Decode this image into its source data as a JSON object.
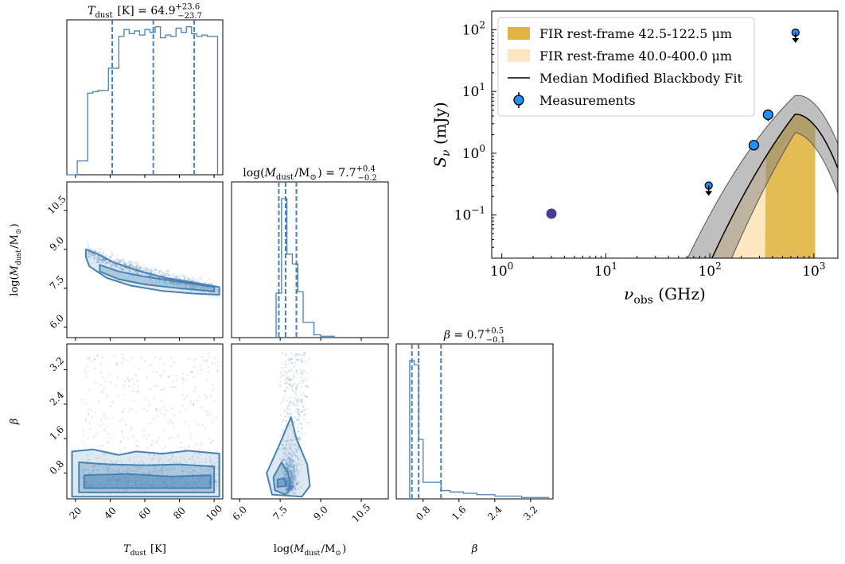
{
  "chart_data": [
    {
      "type": "histogram",
      "panel": "corner-1d-Tdust",
      "title_parts": {
        "var": "T",
        "sub": "dust",
        "unit": " [K] = 64.9",
        "sup": "+23.6",
        "inf": "−23.7"
      },
      "xlim": [
        15,
        105
      ],
      "ylim": [
        0,
        1.12
      ],
      "x_ticks": [
        "20",
        "40",
        "60",
        "80",
        "100"
      ],
      "x_tick_values": [
        20,
        40,
        60,
        80,
        100
      ],
      "xlabel_parts": {
        "var": "T",
        "sub": "dust",
        "unit": " [K]"
      },
      "quantiles": [
        41.2,
        64.9,
        88.5
      ],
      "bins": [
        [
          15,
          18,
          0
        ],
        [
          18,
          21,
          0
        ],
        [
          21,
          24,
          0.1
        ],
        [
          24,
          27,
          0.1
        ],
        [
          27,
          30,
          0.59
        ],
        [
          30,
          33,
          0.6
        ],
        [
          33,
          36,
          0.61
        ],
        [
          36,
          39,
          0.61
        ],
        [
          39,
          42,
          0.77
        ],
        [
          42,
          45,
          0.77
        ],
        [
          45,
          48,
          1.0
        ],
        [
          48,
          51,
          1.05
        ],
        [
          51,
          54,
          1.02
        ],
        [
          54,
          57,
          1.04
        ],
        [
          57,
          60,
          1.01
        ],
        [
          60,
          63,
          1.05
        ],
        [
          63,
          66,
          1.03
        ],
        [
          66,
          69,
          1.07
        ],
        [
          69,
          72,
          0.99
        ],
        [
          72,
          75,
          1.01
        ],
        [
          75,
          78,
          1.0
        ],
        [
          78,
          81,
          1.06
        ],
        [
          81,
          84,
          1.03
        ],
        [
          84,
          87,
          1.07
        ],
        [
          87,
          90,
          1.02
        ],
        [
          90,
          93,
          1.0
        ],
        [
          93,
          96,
          1.01
        ],
        [
          96,
          99,
          1.0
        ],
        [
          99,
          102,
          1.0
        ]
      ]
    },
    {
      "type": "histogram",
      "panel": "corner-1d-Mdust",
      "title_parts": {
        "pre": "log(",
        "var": "M",
        "sub": "dust",
        "mid": "/M",
        "sun": "⊙",
        "post": ") = 7.7",
        "sup": "+0.4",
        "inf": "−0.2"
      },
      "xlim": [
        5.7,
        11.5
      ],
      "ylim": [
        0,
        1.12
      ],
      "x_ticks": [
        "6.0",
        "7.5",
        "9.0",
        "10.5"
      ],
      "x_tick_values": [
        6.0,
        7.5,
        9.0,
        10.5
      ],
      "xlabel_parts": {
        "pre": "log(",
        "var": "M",
        "sub": "dust",
        "mid": "/M",
        "sun": "⊙",
        "post": ")"
      },
      "quantiles": [
        7.45,
        7.7,
        8.1
      ],
      "bins": [
        [
          7.35,
          7.55,
          0.32
        ],
        [
          7.55,
          7.75,
          1.0
        ],
        [
          7.75,
          7.95,
          0.6
        ],
        [
          7.95,
          8.15,
          0.53
        ],
        [
          8.15,
          8.35,
          0.33
        ],
        [
          8.35,
          8.55,
          0.11
        ],
        [
          8.55,
          8.75,
          0.11
        ],
        [
          8.75,
          9.0,
          0.02
        ],
        [
          9.0,
          9.5,
          0.01
        ]
      ]
    },
    {
      "type": "histogram",
      "panel": "corner-1d-beta",
      "title_parts": {
        "var": "β",
        "unit": " = 0.7",
        "sup": "+0.5",
        "inf": "−0.1"
      },
      "xlim": [
        0.2,
        3.7
      ],
      "ylim": [
        0,
        1.12
      ],
      "x_ticks": [
        "0.8",
        "1.6",
        "2.4",
        "3.2"
      ],
      "x_tick_values": [
        0.8,
        1.6,
        2.4,
        3.2
      ],
      "xlabel_parts": {
        "var": "β"
      },
      "quantiles": [
        0.55,
        0.7,
        1.2
      ],
      "bins": [
        [
          0.5,
          0.6,
          1.0
        ],
        [
          0.6,
          0.7,
          0.97
        ],
        [
          0.7,
          0.8,
          0.43
        ],
        [
          0.8,
          1.2,
          0.12
        ],
        [
          1.2,
          1.4,
          0.06
        ],
        [
          1.4,
          1.7,
          0.05
        ],
        [
          1.7,
          2.0,
          0.04
        ],
        [
          2.0,
          2.4,
          0.03
        ],
        [
          2.4,
          3.0,
          0.02
        ],
        [
          3.0,
          3.6,
          0.01
        ]
      ]
    },
    {
      "type": "scatter",
      "panel": "corner-2d-Tdust-Mdust",
      "xlim": [
        15,
        105
      ],
      "ylim": [
        5.6,
        11.6
      ],
      "y_ticks": [
        "6.0",
        "7.5",
        "9.0",
        "10.5"
      ],
      "y_tick_values": [
        6.0,
        7.5,
        9.0,
        10.5
      ],
      "ylabel_parts": {
        "pre": "log(",
        "var": "M",
        "sub": "dust",
        "mid": "/M",
        "sun": "⊙",
        "post": ")"
      },
      "trend": [
        [
          27,
          8.95
        ],
        [
          35,
          8.6
        ],
        [
          45,
          8.2
        ],
        [
          55,
          7.95
        ],
        [
          65,
          7.75
        ],
        [
          75,
          7.65
        ],
        [
          85,
          7.5
        ],
        [
          95,
          7.45
        ],
        [
          102,
          7.4
        ]
      ],
      "contours": [
        [
          [
            26,
            9.0
          ],
          [
            32,
            8.85
          ],
          [
            42,
            8.5
          ],
          [
            55,
            8.2
          ],
          [
            72,
            7.9
          ],
          [
            90,
            7.7
          ],
          [
            103,
            7.55
          ],
          [
            103,
            7.25
          ],
          [
            88,
            7.3
          ],
          [
            70,
            7.4
          ],
          [
            52,
            7.6
          ],
          [
            38,
            7.9
          ],
          [
            28,
            8.35
          ],
          [
            26,
            8.7
          ]
        ],
        [
          [
            34,
            8.4
          ],
          [
            45,
            8.15
          ],
          [
            60,
            7.95
          ],
          [
            80,
            7.75
          ],
          [
            100,
            7.55
          ],
          [
            100,
            7.38
          ],
          [
            80,
            7.5
          ],
          [
            60,
            7.65
          ],
          [
            45,
            7.85
          ],
          [
            34,
            8.15
          ]
        ]
      ]
    },
    {
      "type": "scatter",
      "panel": "corner-2d-Tdust-beta",
      "xlim": [
        15,
        105
      ],
      "ylim": [
        0.2,
        3.8
      ],
      "y_ticks": [
        "0.8",
        "1.6",
        "2.4",
        "3.2"
      ],
      "y_tick_values": [
        0.8,
        1.6,
        2.4,
        3.2
      ],
      "ylabel_parts": {
        "var": "β"
      },
      "contours": [
        [
          [
            18,
            0.25
          ],
          [
            18,
            1.3
          ],
          [
            30,
            1.35
          ],
          [
            45,
            1.22
          ],
          [
            55,
            1.3
          ],
          [
            70,
            1.25
          ],
          [
            85,
            1.32
          ],
          [
            103,
            1.25
          ],
          [
            103,
            0.25
          ]
        ],
        [
          [
            22,
            0.35
          ],
          [
            22,
            1.05
          ],
          [
            40,
            1.0
          ],
          [
            60,
            0.98
          ],
          [
            80,
            1.0
          ],
          [
            100,
            0.95
          ],
          [
            100,
            0.35
          ]
        ],
        [
          [
            25,
            0.45
          ],
          [
            25,
            0.75
          ],
          [
            50,
            0.78
          ],
          [
            75,
            0.72
          ],
          [
            98,
            0.75
          ],
          [
            98,
            0.45
          ]
        ]
      ]
    },
    {
      "type": "scatter",
      "panel": "corner-2d-Mdust-beta",
      "xlim": [
        5.7,
        11.5
      ],
      "ylim": [
        0.2,
        3.8
      ],
      "contours": [
        [
          [
            7.2,
            0.3
          ],
          [
            7.0,
            0.8
          ],
          [
            7.5,
            1.5
          ],
          [
            7.9,
            2.1
          ],
          [
            8.1,
            1.6
          ],
          [
            8.5,
            1.0
          ],
          [
            8.6,
            0.5
          ],
          [
            8.3,
            0.25
          ]
        ],
        [
          [
            7.3,
            0.4
          ],
          [
            7.25,
            0.7
          ],
          [
            7.55,
            1.05
          ],
          [
            7.8,
            0.8
          ],
          [
            7.9,
            0.45
          ],
          [
            7.7,
            0.3
          ]
        ],
        [
          [
            7.4,
            0.48
          ],
          [
            7.4,
            0.65
          ],
          [
            7.65,
            0.68
          ],
          [
            7.72,
            0.5
          ]
        ]
      ]
    },
    {
      "type": "sed",
      "panel": "sed",
      "xscale": "log",
      "yscale": "log",
      "xlim": [
        0.8,
        1700
      ],
      "ylim": [
        0.02,
        200
      ],
      "x_ticks": [
        1,
        10,
        100,
        1000
      ],
      "y_ticks": [
        0.1,
        1,
        10,
        100
      ],
      "xlabel": {
        "var": "ν",
        "sub": "obs",
        "unit": " (GHz)"
      },
      "ylabel": {
        "var": "S",
        "sub": "ν",
        "unit": " (mJy)"
      },
      "legend_position": "upper-left",
      "legend": [
        {
          "label": "FIR rest-frame 42.5-122.5 μm",
          "color": "#dfb441",
          "kind": "patch"
        },
        {
          "label": "FIR rest-frame 40.0-400.0 μm",
          "color": "#fde7c1",
          "kind": "patch"
        },
        {
          "label": "Median Modified Blackbody Fit",
          "color": "#000000",
          "kind": "line"
        },
        {
          "label": "Measurements",
          "color": "#1e90ff",
          "kind": "errorbar"
        }
      ],
      "band_wide": [
        103,
        1030
      ],
      "band_narrow": [
        339,
        1030
      ],
      "model_peak": {
        "x": 660,
        "y": 4.3
      },
      "model_uncertainty_dex": {
        "low_nu": 1.0,
        "peak": 0.3,
        "high_nu": 0.4
      },
      "measurements": [
        {
          "x": 97.5,
          "y": 0.3,
          "type": "upper-limit"
        },
        {
          "x": 265,
          "y": 1.35,
          "type": "detection",
          "yerr": 0.15
        },
        {
          "x": 363,
          "y": 4.2,
          "type": "detection",
          "yerr": 0.9
        },
        {
          "x": 666,
          "y": 90,
          "type": "upper-limit"
        }
      ],
      "extra_point": {
        "x": 3,
        "y": 0.105,
        "color": "#483d8b"
      }
    }
  ]
}
